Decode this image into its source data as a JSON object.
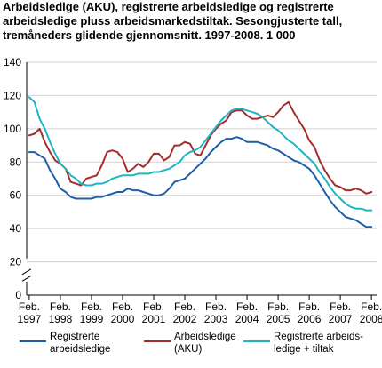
{
  "chart_data": {
    "type": "line",
    "title_lines": [
      "Arbeidsledige (AKU), registrerte arbeidsledige og registrerte",
      "arbeidsledige pluss arbeidsmarkedstiltak. Sesongjusterte tall,",
      "tremåneders glidende gjennomsnitt. 1997-2008. 1 000"
    ],
    "xlabel": "",
    "ylabel": "",
    "ylim": [
      0,
      140
    ],
    "y_ticks": [
      0,
      20,
      40,
      60,
      80,
      100,
      120,
      140
    ],
    "x_ticks": [
      {
        "x": 1997.083,
        "label_top": "Feb.",
        "label_bottom": "1997"
      },
      {
        "x": 1998.083,
        "label_top": "Feb.",
        "label_bottom": "1998"
      },
      {
        "x": 1999.083,
        "label_top": "Feb.",
        "label_bottom": "1999"
      },
      {
        "x": 2000.083,
        "label_top": "Feb.",
        "label_bottom": "2000"
      },
      {
        "x": 2001.083,
        "label_top": "Feb.",
        "label_bottom": "2001"
      },
      {
        "x": 2002.083,
        "label_top": "Feb.",
        "label_bottom": "2002"
      },
      {
        "x": 2003.083,
        "label_top": "Feb.",
        "label_bottom": "2003"
      },
      {
        "x": 2004.083,
        "label_top": "Feb.",
        "label_bottom": "2004"
      },
      {
        "x": 2005.083,
        "label_top": "Feb.",
        "label_bottom": "2005"
      },
      {
        "x": 2006.083,
        "label_top": "Feb.",
        "label_bottom": "2006"
      },
      {
        "x": 2007.083,
        "label_top": "Feb.",
        "label_bottom": "2007"
      },
      {
        "x": 2008.083,
        "label_top": "Feb.",
        "label_bottom": "2008"
      }
    ],
    "xlim": [
      1997.0,
      2008.25
    ],
    "grid": "horizontal",
    "axis_break": true,
    "legend_position": "bottom",
    "series": [
      {
        "name": "Registrerte arbeidsledige",
        "color": "#1f5ea8",
        "x": [
          1997.083,
          1997.25,
          1997.417,
          1997.583,
          1997.75,
          1997.917,
          1998.083,
          1998.25,
          1998.417,
          1998.583,
          1998.75,
          1998.917,
          1999.083,
          1999.25,
          1999.417,
          1999.583,
          1999.75,
          1999.917,
          2000.083,
          2000.25,
          2000.417,
          2000.583,
          2000.75,
          2000.917,
          2001.083,
          2001.25,
          2001.417,
          2001.583,
          2001.75,
          2001.917,
          2002.083,
          2002.25,
          2002.417,
          2002.583,
          2002.75,
          2002.917,
          2003.083,
          2003.25,
          2003.417,
          2003.583,
          2003.75,
          2003.917,
          2004.083,
          2004.25,
          2004.417,
          2004.583,
          2004.75,
          2004.917,
          2005.083,
          2005.25,
          2005.417,
          2005.583,
          2005.75,
          2005.917,
          2006.083,
          2006.25,
          2006.417,
          2006.583,
          2006.75,
          2006.917,
          2007.083,
          2007.25,
          2007.417,
          2007.583,
          2007.75,
          2007.917,
          2008.083
        ],
        "values": [
          86,
          86,
          84,
          82,
          75,
          70,
          64,
          62,
          59,
          58,
          58,
          58,
          58,
          59,
          59,
          60,
          61,
          62,
          62,
          64,
          63,
          63,
          62,
          61,
          60,
          60,
          61,
          64,
          68,
          69,
          70,
          73,
          76,
          79,
          82,
          86,
          89,
          92,
          94,
          94,
          95,
          94,
          92,
          92,
          92,
          91,
          90,
          88,
          87,
          85,
          83,
          81,
          80,
          78,
          76,
          72,
          67,
          62,
          57,
          53,
          50,
          47,
          46,
          45,
          43,
          41,
          41
        ]
      },
      {
        "name": "Arbeidsledige (AKU)",
        "color": "#a32d2d",
        "x": [
          1997.083,
          1997.25,
          1997.417,
          1997.583,
          1997.75,
          1997.917,
          1998.083,
          1998.25,
          1998.417,
          1998.583,
          1998.75,
          1998.917,
          1999.083,
          1999.25,
          1999.417,
          1999.583,
          1999.75,
          1999.917,
          2000.083,
          2000.25,
          2000.417,
          2000.583,
          2000.75,
          2000.917,
          2001.083,
          2001.25,
          2001.417,
          2001.583,
          2001.75,
          2001.917,
          2002.083,
          2002.25,
          2002.417,
          2002.583,
          2002.75,
          2002.917,
          2003.083,
          2003.25,
          2003.417,
          2003.583,
          2003.75,
          2003.917,
          2004.083,
          2004.25,
          2004.417,
          2004.583,
          2004.75,
          2004.917,
          2005.083,
          2005.25,
          2005.417,
          2005.583,
          2005.75,
          2005.917,
          2006.083,
          2006.25,
          2006.417,
          2006.583,
          2006.75,
          2006.917,
          2007.083,
          2007.25,
          2007.417,
          2007.583,
          2007.75,
          2007.917,
          2008.083
        ],
        "values": [
          96,
          97,
          100,
          92,
          86,
          81,
          79,
          76,
          68,
          67,
          66,
          70,
          71,
          72,
          78,
          86,
          87,
          86,
          82,
          74,
          76,
          79,
          77,
          80,
          85,
          85,
          81,
          83,
          90,
          90,
          92,
          91,
          85,
          84,
          90,
          96,
          100,
          103,
          105,
          110,
          111,
          111,
          108,
          106,
          106,
          107,
          108,
          107,
          110,
          114,
          116,
          110,
          105,
          100,
          93,
          89,
          81,
          75,
          70,
          66,
          65,
          63,
          63,
          64,
          63,
          61,
          62
        ]
      },
      {
        "name": "Registrerte arbeidsledige + tiltak",
        "color": "#1fb5c2",
        "x": [
          1997.083,
          1997.25,
          1997.417,
          1997.583,
          1997.75,
          1997.917,
          1998.083,
          1998.25,
          1998.417,
          1998.583,
          1998.75,
          1998.917,
          1999.083,
          1999.25,
          1999.417,
          1999.583,
          1999.75,
          1999.917,
          2000.083,
          2000.25,
          2000.417,
          2000.583,
          2000.75,
          2000.917,
          2001.083,
          2001.25,
          2001.417,
          2001.583,
          2001.75,
          2001.917,
          2002.083,
          2002.25,
          2002.417,
          2002.583,
          2002.75,
          2002.917,
          2003.083,
          2003.25,
          2003.417,
          2003.583,
          2003.75,
          2003.917,
          2004.083,
          2004.25,
          2004.417,
          2004.583,
          2004.75,
          2004.917,
          2005.083,
          2005.25,
          2005.417,
          2005.583,
          2005.75,
          2005.917,
          2006.083,
          2006.25,
          2006.417,
          2006.583,
          2006.75,
          2006.917,
          2007.083,
          2007.25,
          2007.417,
          2007.583,
          2007.75,
          2007.917,
          2008.083
        ],
        "values": [
          119,
          116,
          106,
          100,
          92,
          85,
          79,
          76,
          72,
          70,
          67,
          66,
          66,
          67,
          67,
          68,
          70,
          71,
          72,
          72,
          72,
          73,
          73,
          73,
          74,
          74,
          75,
          76,
          78,
          80,
          84,
          86,
          87,
          89,
          93,
          97,
          101,
          105,
          108,
          111,
          112,
          112,
          111,
          110,
          109,
          107,
          104,
          101,
          99,
          96,
          93,
          91,
          88,
          85,
          82,
          79,
          74,
          70,
          65,
          61,
          58,
          55,
          53,
          52,
          52,
          51,
          51
        ]
      }
    ],
    "legend": [
      {
        "line1": "Registrerte",
        "line2": "arbeidsledige",
        "color": "#1f5ea8"
      },
      {
        "line1": "Arbeidsledige",
        "line2": "(AKU)",
        "color": "#a32d2d"
      },
      {
        "line1": "Registrerte arbeids-",
        "line2": "ledige + tiltak",
        "color": "#1fb5c2"
      }
    ]
  }
}
